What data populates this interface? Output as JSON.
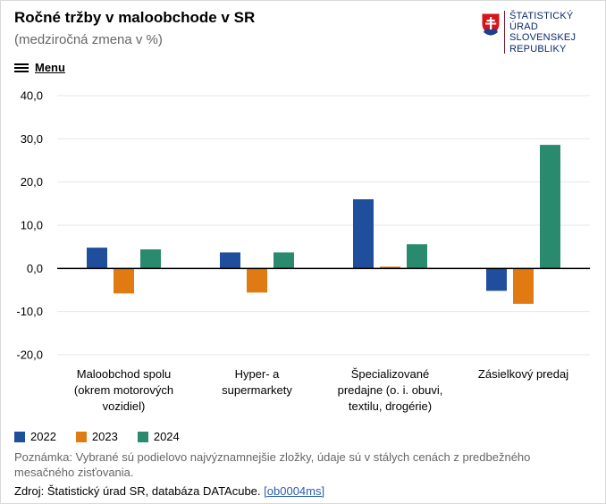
{
  "header": {
    "title": "Ročné tržby v maloobchode v SR",
    "subtitle": "(medziročná zmena v %)"
  },
  "logo": {
    "lines": [
      "ŠTATISTICKÝ",
      "ÚRAD",
      "SLOVENSKEJ",
      "REPUBLIKY"
    ],
    "accent_color": "#7a1a2c",
    "text_color": "#0a2a6b"
  },
  "menu": {
    "label": "Menu",
    "icon": "hamburger-icon"
  },
  "chart_data": {
    "type": "bar",
    "categories": [
      "Maloobchod spolu (okrem motorových vozidiel)",
      "Hyper- a supermarkety",
      "Špecializované predajne (o. i. obuvi, textilu, drogérie)",
      "Zásielkový predaj"
    ],
    "category_lines": [
      [
        "Maloobchod spolu",
        "(okrem motorových",
        "vozidiel)"
      ],
      [
        "Hyper- a",
        "supermarkety"
      ],
      [
        "Špecializované",
        "predajne (o. i. obuvi,",
        "textilu, drogérie)"
      ],
      [
        "Zásielkový predaj"
      ]
    ],
    "series": [
      {
        "name": "2022",
        "color": "#1f4e9c",
        "values": [
          4.8,
          3.7,
          16.0,
          -5.2
        ]
      },
      {
        "name": "2023",
        "color": "#e07b13",
        "values": [
          -5.8,
          -5.6,
          0.4,
          -8.2
        ]
      },
      {
        "name": "2024",
        "color": "#2a8a6e",
        "values": [
          4.4,
          3.7,
          5.6,
          28.6
        ]
      }
    ],
    "ylim": [
      -20,
      40
    ],
    "yticks": [
      -20,
      -10,
      0,
      10,
      20,
      30,
      40
    ],
    "ytick_labels": [
      "-20,0",
      "-10,0",
      "0,0",
      "10,0",
      "20,0",
      "30,0",
      "40,0"
    ],
    "grid": true,
    "legend_position": "bottom-left"
  },
  "footer": {
    "note": "Poznámka: Vybrané sú podielovo najvýznamnejšie zložky, údaje sú v stálych cenách z predbežného mesačného zisťovania.",
    "source_text": "Zdroj: Štatistický úrad SR, databáza DATAcube.",
    "source_link": "[ob0004ms]"
  }
}
